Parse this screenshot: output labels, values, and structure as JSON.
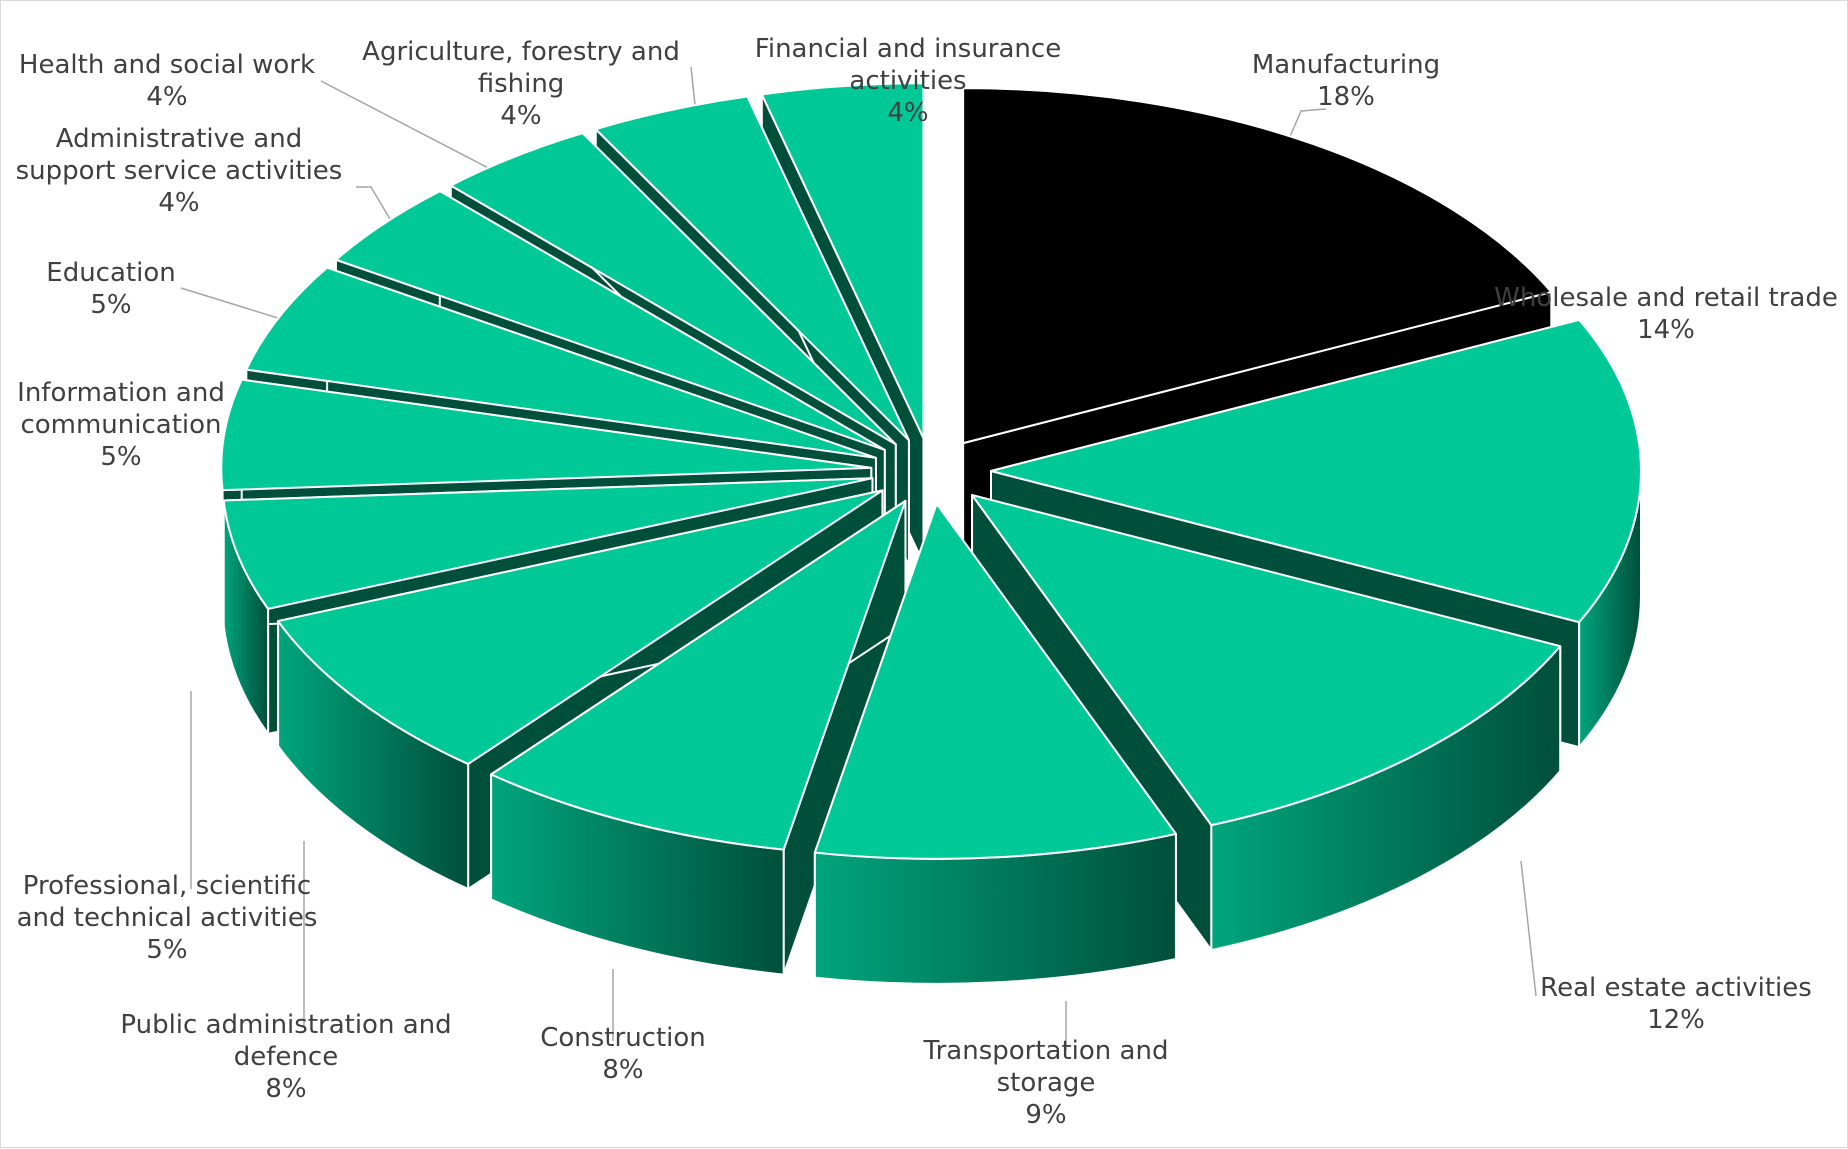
{
  "chart_data": {
    "type": "pie",
    "title": "",
    "colors": {
      "highlight_top": "#000000",
      "slice_top": "#00c896",
      "slice_side_light": "#00a57c",
      "slice_side_dark": "#004f3a",
      "edge": "#ffffff",
      "leader_line": "#a6a6a6",
      "label_text": "#404040"
    },
    "slices": [
      {
        "name": "Manufacturing",
        "value": 18,
        "label_lines": [
          "Manufacturing"
        ],
        "value_label": "18%",
        "highlight": true
      },
      {
        "name": "Wholesale and retail trade",
        "value": 14,
        "label_lines": [
          "Wholesale and retail trade"
        ],
        "value_label": "14%"
      },
      {
        "name": "Real estate activities",
        "value": 12,
        "label_lines": [
          "Real estate activities"
        ],
        "value_label": "12%"
      },
      {
        "name": "Transportation and storage",
        "value": 9,
        "label_lines": [
          "Transportation and",
          "storage"
        ],
        "value_label": "9%"
      },
      {
        "name": "Construction",
        "value": 8,
        "label_lines": [
          "Construction"
        ],
        "value_label": "8%"
      },
      {
        "name": "Public administration and defence",
        "value": 8,
        "label_lines": [
          "Public administration and",
          "defence"
        ],
        "value_label": "8%"
      },
      {
        "name": "Professional, scientific and technical activities",
        "value": 5,
        "label_lines": [
          "Professional, scientific",
          "and technical activities"
        ],
        "value_label": "5%"
      },
      {
        "name": "Information and communication",
        "value": 5,
        "label_lines": [
          "Information and",
          "communication"
        ],
        "value_label": "5%"
      },
      {
        "name": "Education",
        "value": 5,
        "label_lines": [
          "Education"
        ],
        "value_label": "5%"
      },
      {
        "name": "Administrative and support service activities",
        "value": 4,
        "label_lines": [
          "Administrative and",
          "support service activities"
        ],
        "value_label": "4%"
      },
      {
        "name": "Health and social work",
        "value": 4,
        "label_lines": [
          "Health and social work"
        ],
        "value_label": "4%"
      },
      {
        "name": "Agriculture, forestry and fishing",
        "value": 4,
        "label_lines": [
          "Agriculture, forestry and",
          "fishing"
        ],
        "value_label": "4%"
      },
      {
        "name": "Financial and insurance activities",
        "value": 4,
        "label_lines": [
          "Financial and insurance",
          "activities"
        ],
        "value_label": "4%"
      }
    ]
  }
}
